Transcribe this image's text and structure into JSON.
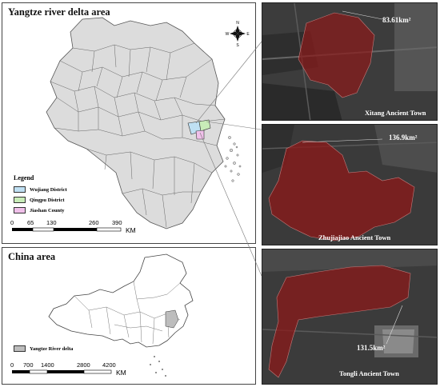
{
  "delta_panel": {
    "title": "Yangtze river delta area",
    "legend": {
      "title": "Legend",
      "items": [
        {
          "label": "Wujiang District",
          "color": "#bfe0f3"
        },
        {
          "label": "Qingpu District",
          "color": "#c8ecb8"
        },
        {
          "label": "Jiashan County",
          "color": "#f0c0ea"
        }
      ]
    },
    "scale": {
      "ticks": [
        "0",
        "65",
        "130",
        "260",
        "390"
      ],
      "unit": "KM"
    },
    "compass": {
      "n": "N",
      "s": "S",
      "e": "E",
      "w": "W",
      "icon": "compass-rose-icon"
    }
  },
  "china_panel": {
    "title": "China area",
    "legend": {
      "label": "Yangtze River delta",
      "color": "#bdbdbd"
    },
    "scale": {
      "ticks": [
        "0",
        "700",
        "1400",
        "2800",
        "4200"
      ],
      "unit": "KM"
    }
  },
  "towns": [
    {
      "name": "Xitang Ancient Town",
      "area": "83.61km²"
    },
    {
      "name": "Zhujiajiao Ancient Town",
      "area": "136.9km²"
    },
    {
      "name": "Tongli Ancient Town",
      "area": "131.5km²"
    }
  ],
  "colors": {
    "region_fill": "#dcdcdc",
    "town_overlay": "#8b1a1a",
    "photo_bg": "#3a3a3a"
  }
}
